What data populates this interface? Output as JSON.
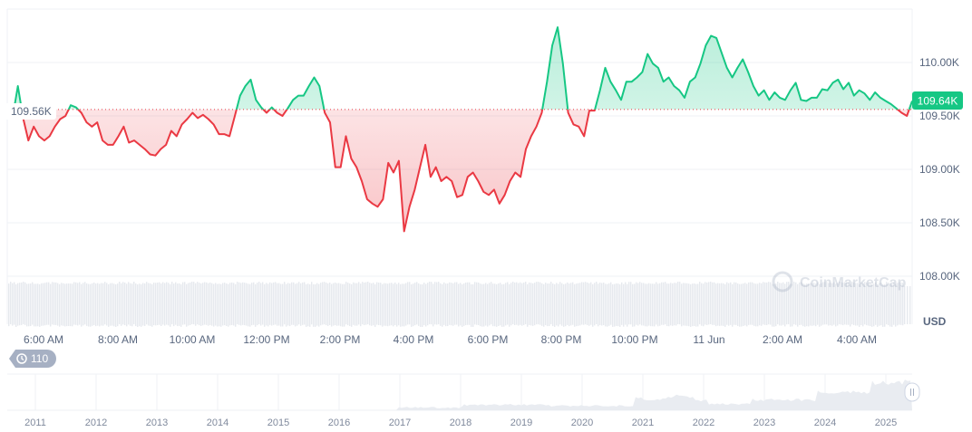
{
  "chart_data": {
    "type": "line",
    "currency": "USD",
    "reference_price": "109.56K",
    "reference_value": 109.56,
    "current_price_label": "109.64K",
    "ylim": [
      107.95,
      110.35
    ],
    "y_ticks": [
      {
        "v": 110.0,
        "label": "110.00K"
      },
      {
        "v": 109.5,
        "label": "109.50K"
      },
      {
        "v": 109.0,
        "label": "109.00K"
      },
      {
        "v": 108.5,
        "label": "108.50K"
      },
      {
        "v": 108.0,
        "label": "108.00K"
      }
    ],
    "x_ticks": [
      "6:00 AM",
      "8:00 AM",
      "10:00 AM",
      "12:00 PM",
      "2:00 PM",
      "4:00 PM",
      "6:00 PM",
      "8:00 PM",
      "10:00 PM",
      "11 Jun",
      "2:00 AM",
      "4:00 AM"
    ],
    "values": [
      109.53,
      109.48,
      109.78,
      109.48,
      109.27,
      109.4,
      109.31,
      109.27,
      109.31,
      109.4,
      109.47,
      109.5,
      109.6,
      109.58,
      109.53,
      109.44,
      109.4,
      109.44,
      109.27,
      109.23,
      109.23,
      109.31,
      109.4,
      109.25,
      109.27,
      109.23,
      109.19,
      109.14,
      109.13,
      109.19,
      109.23,
      109.36,
      109.31,
      109.42,
      109.47,
      109.53,
      109.48,
      109.51,
      109.47,
      109.42,
      109.33,
      109.33,
      109.31,
      109.5,
      109.69,
      109.78,
      109.84,
      109.65,
      109.58,
      109.53,
      109.58,
      109.53,
      109.5,
      109.57,
      109.65,
      109.69,
      109.69,
      109.78,
      109.86,
      109.78,
      109.53,
      109.44,
      109.02,
      109.02,
      109.31,
      109.1,
      109.02,
      108.89,
      108.72,
      108.68,
      108.65,
      108.72,
      109.06,
      108.97,
      109.08,
      108.42,
      108.65,
      108.81,
      109.02,
      109.23,
      108.93,
      109.02,
      108.89,
      108.93,
      108.89,
      108.74,
      108.76,
      108.93,
      108.97,
      108.89,
      108.79,
      108.76,
      108.81,
      108.68,
      108.76,
      108.89,
      108.97,
      108.93,
      109.19,
      109.31,
      109.4,
      109.53,
      109.82,
      110.16,
      110.33,
      109.99,
      109.53,
      109.42,
      109.4,
      109.31,
      109.55,
      109.55,
      109.74,
      109.95,
      109.82,
      109.74,
      109.65,
      109.82,
      109.82,
      109.86,
      109.91,
      110.08,
      109.99,
      109.95,
      109.82,
      109.86,
      109.78,
      109.74,
      109.67,
      109.82,
      109.86,
      109.99,
      110.16,
      110.25,
      110.23,
      110.09,
      109.95,
      109.86,
      109.95,
      110.03,
      109.91,
      109.78,
      109.69,
      109.74,
      109.65,
      109.72,
      109.67,
      109.65,
      109.74,
      109.81,
      109.65,
      109.64,
      109.67,
      109.67,
      109.75,
      109.74,
      109.81,
      109.84,
      109.75,
      109.81,
      109.69,
      109.74,
      109.71,
      109.65,
      109.72,
      109.67,
      109.64,
      109.61,
      109.57,
      109.53,
      109.5,
      109.64
    ],
    "colors": {
      "up": "#16c784",
      "down": "#ea3943",
      "grid": "#eff2f5",
      "volume": "#e6e9ee"
    },
    "overview": {
      "years": [
        "2011",
        "2012",
        "2013",
        "2014",
        "2015",
        "2016",
        "2017",
        "2018",
        "2019",
        "2020",
        "2021",
        "2022",
        "2023",
        "2024",
        "2025"
      ],
      "badge": "110"
    },
    "watermark": "CoinMarketCap"
  }
}
